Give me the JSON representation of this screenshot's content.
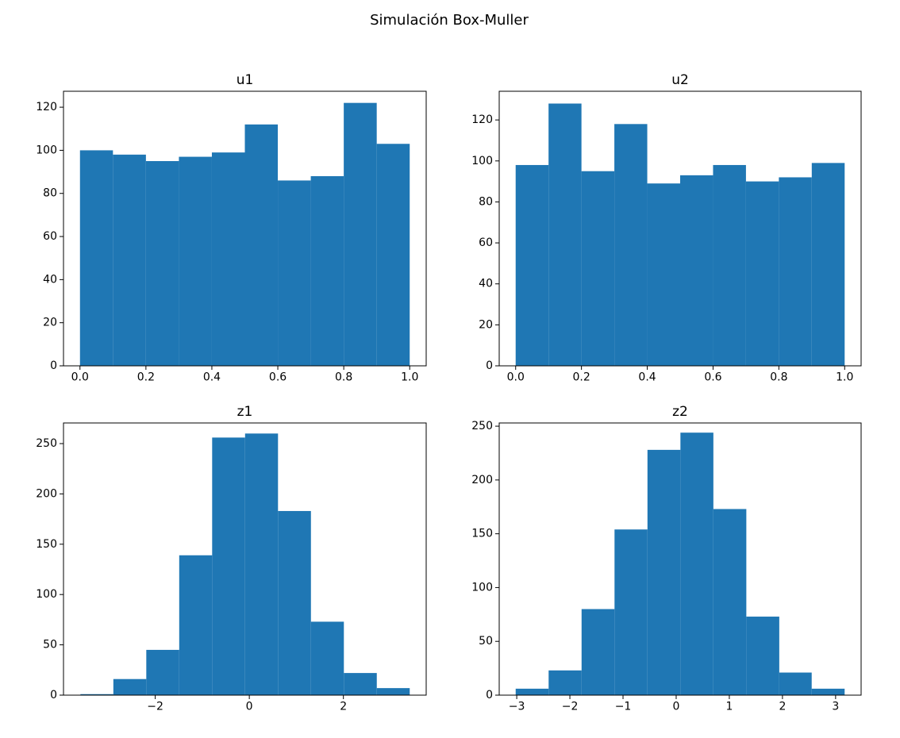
{
  "title": "Simulación Box-Muller",
  "chart_data": [
    {
      "type": "histogram",
      "title": "u1",
      "color": "#1f77b4",
      "bins": [
        0.0,
        0.1,
        0.2,
        0.3,
        0.4,
        0.5,
        0.6,
        0.7,
        0.8,
        0.9,
        1.0
      ],
      "values": [
        100,
        98,
        95,
        97,
        99,
        112,
        86,
        88,
        122,
        103
      ],
      "xlim": [
        -0.05,
        1.05
      ],
      "ylim": [
        0,
        127.4
      ],
      "xticks": [
        {
          "value": 0,
          "label": "0.0"
        },
        0.2,
        0.4,
        0.6,
        0.8,
        {
          "value": 1,
          "label": "1.0"
        }
      ],
      "yticks": [
        0,
        20,
        40,
        60,
        80,
        100,
        120
      ]
    },
    {
      "type": "histogram",
      "title": "u2",
      "color": "#1f77b4",
      "bins": [
        0.0,
        0.1,
        0.2,
        0.3,
        0.4,
        0.5,
        0.6,
        0.7,
        0.8,
        0.9,
        1.0
      ],
      "values": [
        98,
        128,
        95,
        118,
        89,
        93,
        98,
        90,
        92,
        99
      ],
      "xlim": [
        -0.05,
        1.05
      ],
      "ylim": [
        0,
        134
      ],
      "xticks": [
        {
          "value": 0,
          "label": "0.0"
        },
        0.2,
        0.4,
        0.6,
        0.8,
        {
          "value": 1,
          "label": "1.0"
        }
      ],
      "yticks": [
        0,
        20,
        40,
        60,
        80,
        100,
        120
      ]
    },
    {
      "type": "histogram",
      "title": "z1",
      "color": "#1f77b4",
      "bins": [
        -3.59,
        -2.89,
        -2.19,
        -1.49,
        -0.79,
        -0.09,
        0.61,
        1.31,
        2.01,
        2.71,
        3.41
      ],
      "values": [
        1,
        16,
        45,
        139,
        256,
        260,
        183,
        73,
        22,
        7
      ],
      "xlim": [
        -3.95,
        3.76
      ],
      "ylim": [
        0,
        270.5
      ],
      "xticks": [
        {
          "value": -2,
          "label": "−2"
        },
        0,
        2
      ],
      "yticks": [
        0,
        50,
        100,
        150,
        200,
        250
      ]
    },
    {
      "type": "histogram",
      "title": "z2",
      "color": "#1f77b4",
      "bins": [
        -3.02,
        -2.4,
        -1.78,
        -1.16,
        -0.54,
        0.08,
        0.7,
        1.32,
        1.94,
        2.55,
        3.17
      ],
      "values": [
        6,
        23,
        80,
        154,
        228,
        244,
        173,
        73,
        21,
        6
      ],
      "xlim": [
        -3.33,
        3.48
      ],
      "ylim": [
        0,
        253
      ],
      "xticks": [
        {
          "value": -3,
          "label": "−3"
        },
        {
          "value": -2,
          "label": "−2"
        },
        {
          "value": -1,
          "label": "−1"
        },
        0,
        1,
        2,
        3
      ],
      "yticks": [
        0,
        50,
        100,
        150,
        200,
        250
      ]
    }
  ]
}
